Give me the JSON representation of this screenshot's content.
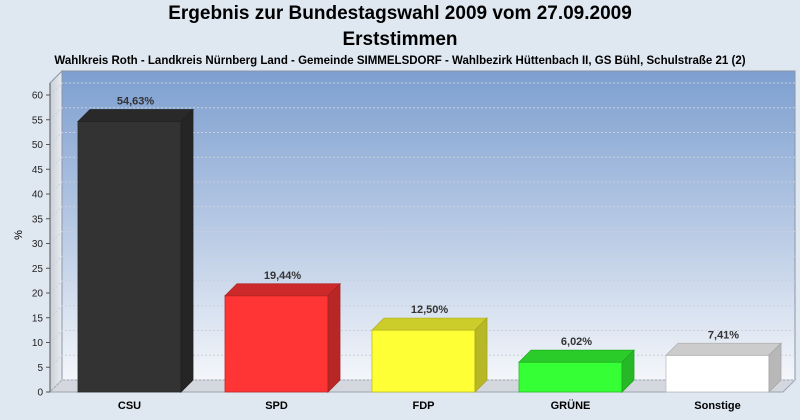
{
  "chart_data": {
    "type": "bar",
    "title": "Ergebnis zur Bundestagswahl 2009 vom 27.09.2009",
    "subtitle": "Erststimmen",
    "subtitle2": "Wahlkreis Roth - Landkreis Nürnberg Land - Gemeinde SIMMELSDORF - Wahlbezirk Hüttenbach II, GS Bühl, Schulstraße 21 (2)",
    "ylabel": "%",
    "xlabel": "",
    "ylim": [
      0,
      60
    ],
    "yticks": [
      0,
      5,
      10,
      15,
      20,
      25,
      30,
      35,
      40,
      45,
      50,
      55,
      60
    ],
    "grid": true,
    "categories": [
      "CSU",
      "SPD",
      "FDP",
      "GRÜNE",
      "Sonstige"
    ],
    "values": [
      54.63,
      19.44,
      12.5,
      6.02,
      7.41
    ],
    "value_labels": [
      "54,63%",
      "19,44%",
      "12,50%",
      "6,02%",
      "7,41%"
    ],
    "colors": [
      "#333333",
      "#ff3535",
      "#ffff35",
      "#35ff35",
      "#ffffff"
    ]
  }
}
